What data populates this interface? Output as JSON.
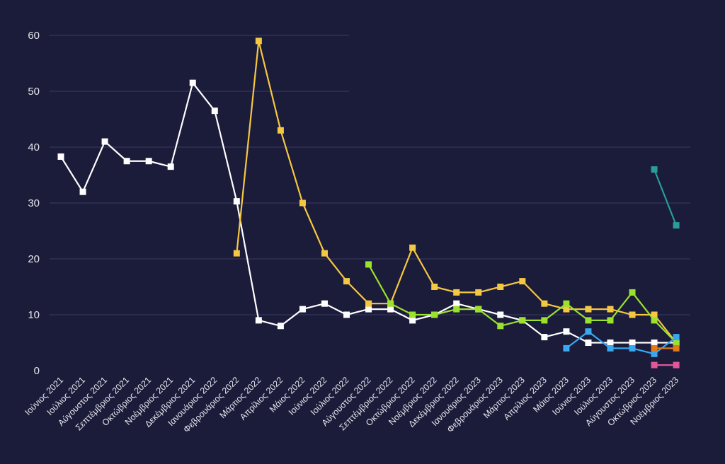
{
  "chart_data": {
    "type": "line",
    "title": "",
    "xlabel": "",
    "ylabel": "",
    "ylim": [
      0,
      60
    ],
    "yticks": [
      0,
      10,
      20,
      30,
      40,
      50,
      60
    ],
    "grid": true,
    "colors": {
      "background": "#1b1b3a",
      "grid": "#3b3b63",
      "text": "#e6e6ee"
    },
    "categories": [
      "Ιούνιος 2021",
      "Ιούλιος 2021",
      "Αύγουστος 2021",
      "Σεπτέμβριος 2021",
      "Οκτώβριος 2021",
      "Νοέμβριος 2021",
      "Δεκέμβριος 2021",
      "Ιανουάριος 2022",
      "Φεβρουάριος 2022",
      "Μάρτιος 2022",
      "Απρίλιος 2022",
      "Μάιος 2022",
      "Ιούνιος 2022",
      "Ιούλιος 2022",
      "Αύγουστος 2022",
      "Σεπτέμβριος 2022",
      "Οκτώβριος 2022",
      "Νοέμβριος 2022",
      "Δεκέμβριος 2022",
      "Ιανουάριος 2023",
      "Φεβρουάριος 2023",
      "Μάρτιος 2023",
      "Απρίλιος 2023",
      "Μάιος 2023",
      "Ιούνιος 2023",
      "Ιούλιος 2023",
      "Αύγουστος 2023",
      "Οκτώβριος 2023",
      "Νοέμβριος 2023"
    ],
    "series": [
      {
        "color": "#ffffff",
        "values": [
          38.3,
          32,
          41,
          37.5,
          37.5,
          36.5,
          51.5,
          46.5,
          30.3,
          9,
          8,
          11,
          12,
          10,
          11,
          11,
          9,
          10,
          12,
          11,
          10,
          9,
          6,
          7,
          5,
          5,
          5,
          5,
          5
        ]
      },
      {
        "color": "#f5c842",
        "values": [
          null,
          null,
          null,
          null,
          null,
          null,
          null,
          null,
          21,
          59,
          43,
          30,
          21,
          16,
          12,
          12,
          22,
          15,
          14,
          14,
          15,
          16,
          12,
          11,
          11,
          11,
          10,
          10,
          5
        ]
      },
      {
        "color": "#9be22d",
        "values": [
          null,
          null,
          null,
          null,
          null,
          null,
          null,
          null,
          null,
          null,
          null,
          null,
          null,
          null,
          19,
          12,
          10,
          10,
          11,
          11,
          8,
          9,
          9,
          12,
          9,
          9,
          14,
          9,
          5
        ]
      },
      {
        "color": "#3aa8f0",
        "values": [
          null,
          null,
          null,
          null,
          null,
          null,
          null,
          null,
          null,
          null,
          null,
          null,
          null,
          null,
          null,
          null,
          null,
          null,
          null,
          null,
          null,
          null,
          null,
          4,
          7,
          4,
          4,
          3,
          6
        ]
      },
      {
        "color": "#e07b1a",
        "values": [
          null,
          null,
          null,
          null,
          null,
          null,
          null,
          null,
          null,
          null,
          null,
          null,
          null,
          null,
          null,
          null,
          null,
          null,
          null,
          null,
          null,
          null,
          null,
          null,
          null,
          null,
          null,
          4,
          4
        ]
      },
      {
        "color": "#e2579a",
        "values": [
          null,
          null,
          null,
          null,
          null,
          null,
          null,
          null,
          null,
          null,
          null,
          null,
          null,
          null,
          null,
          null,
          null,
          null,
          null,
          null,
          null,
          null,
          null,
          null,
          null,
          null,
          null,
          1,
          1
        ]
      },
      {
        "color": "#2a9d9a",
        "values": [
          null,
          null,
          null,
          null,
          null,
          null,
          null,
          null,
          null,
          null,
          null,
          null,
          null,
          null,
          null,
          null,
          null,
          null,
          null,
          null,
          null,
          null,
          null,
          null,
          null,
          null,
          null,
          36,
          26
        ]
      }
    ]
  }
}
